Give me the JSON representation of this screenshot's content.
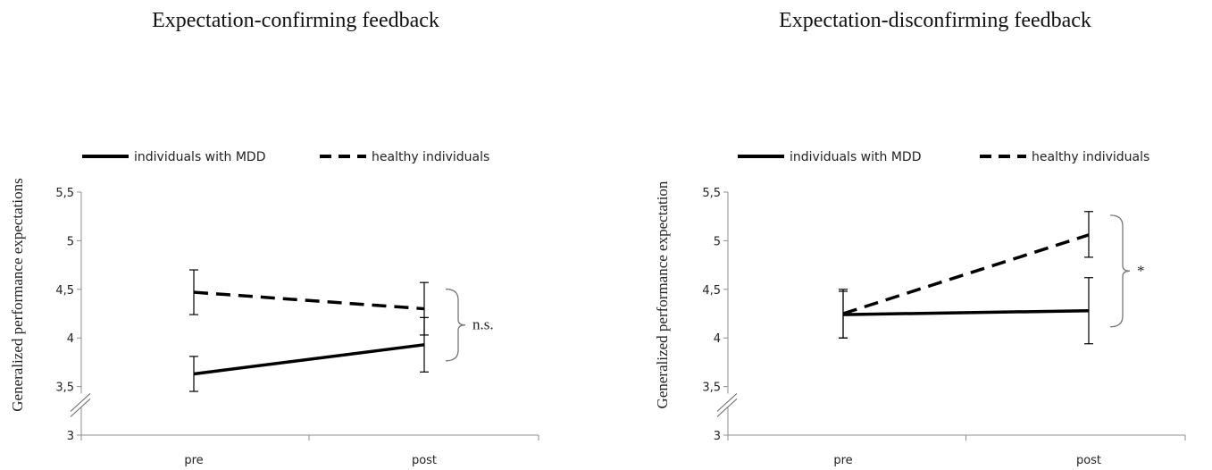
{
  "chart_data": [
    {
      "type": "line",
      "title": "Expectation-confirming  feedback",
      "ylabel": "Generalized performance expectations",
      "xlabel": "",
      "categories": [
        "pre",
        "post"
      ],
      "ylim": [
        3,
        5.5
      ],
      "yticks": [
        "3",
        "3,5",
        "4",
        "4,5",
        "5",
        "5,5"
      ],
      "axis_break": true,
      "grid": false,
      "legend": "top",
      "series": [
        {
          "name": "individuals with MDD",
          "style": "solid",
          "values": [
            3.63,
            3.93
          ],
          "err_lo": [
            3.45,
            3.65
          ],
          "err_hi": [
            3.81,
            4.21
          ]
        },
        {
          "name": "healthy individuals",
          "style": "dashed",
          "values": [
            4.47,
            4.3
          ],
          "err_lo": [
            4.24,
            4.03
          ],
          "err_hi": [
            4.7,
            4.57
          ]
        }
      ],
      "annotation": "n.s."
    },
    {
      "type": "line",
      "title": "Expectation-disconfirming  feedback",
      "ylabel": "Generalized performance expectation",
      "xlabel": "",
      "categories": [
        "pre",
        "post"
      ],
      "ylim": [
        3,
        5.5
      ],
      "yticks": [
        "3",
        "3,5",
        "4",
        "4,5",
        "5",
        "5,5"
      ],
      "axis_break": true,
      "grid": false,
      "legend": "top",
      "series": [
        {
          "name": "individuals with MDD",
          "style": "solid",
          "values": [
            4.24,
            4.28
          ],
          "err_lo": [
            4.0,
            3.94
          ],
          "err_hi": [
            4.48,
            4.62
          ]
        },
        {
          "name": "healthy individuals",
          "style": "dashed",
          "values": [
            4.25,
            5.06
          ],
          "err_lo": [
            4.0,
            4.83
          ],
          "err_hi": [
            4.5,
            5.3
          ]
        }
      ],
      "annotation": "*"
    }
  ]
}
